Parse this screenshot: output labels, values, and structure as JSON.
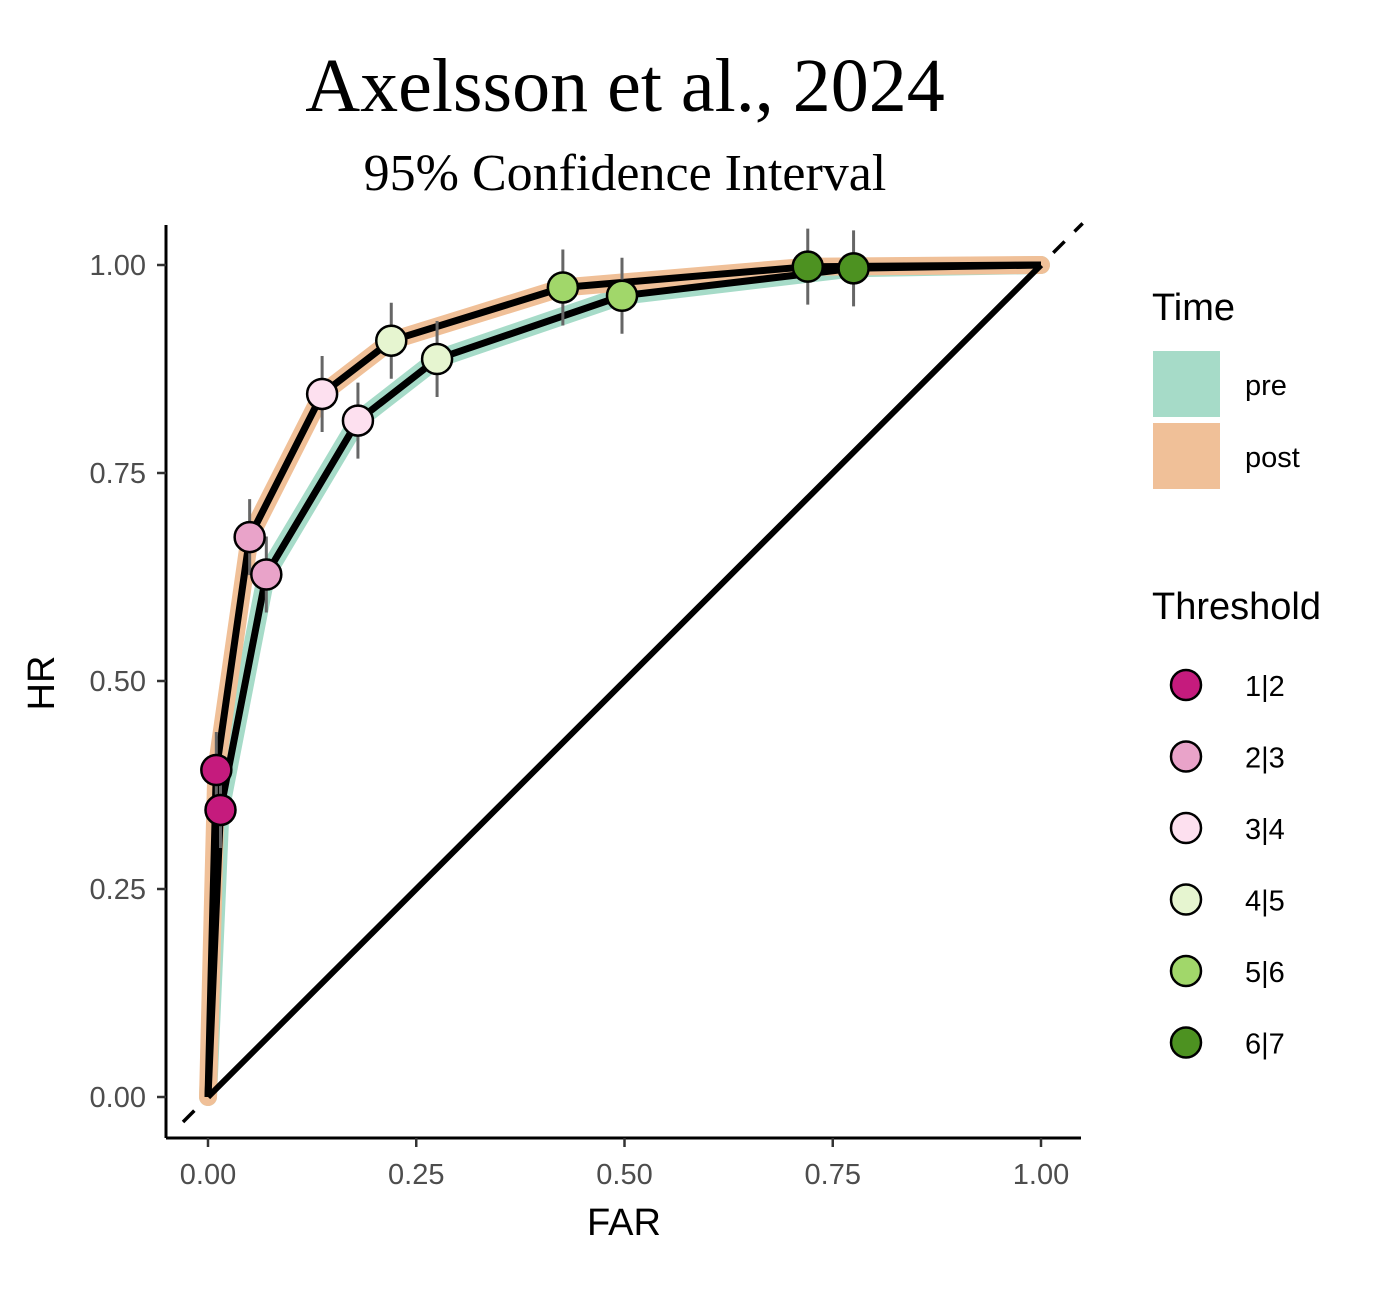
{
  "chart_data": {
    "type": "line",
    "title": "Axelsson et al., 2024",
    "subtitle": "95% Confidence Interval",
    "xlabel": "FAR",
    "ylabel": "HR",
    "xlim": [
      -0.05,
      1.05
    ],
    "ylim": [
      -0.05,
      1.05
    ],
    "x_ticks": [
      "0.00",
      "0.25",
      "0.50",
      "0.75",
      "1.00"
    ],
    "y_ticks": [
      "0.00",
      "0.25",
      "0.50",
      "0.75",
      "1.00"
    ],
    "diagonal_reference": true,
    "grid": false,
    "legend_placement": "right",
    "time_legend": {
      "title": "Time",
      "items": [
        {
          "label": "pre",
          "color": "#a6dbc8"
        },
        {
          "label": "post",
          "color": "#f0c098"
        }
      ]
    },
    "threshold_legend": {
      "title": "Threshold",
      "items": [
        {
          "label": "1|2",
          "color": "#c51b7d"
        },
        {
          "label": "2|3",
          "color": "#e9a3c9"
        },
        {
          "label": "3|4",
          "color": "#fde0ef"
        },
        {
          "label": "4|5",
          "color": "#e6f5d0"
        },
        {
          "label": "5|6",
          "color": "#a1d76a"
        },
        {
          "label": "6|7",
          "color": "#4d9221"
        }
      ]
    },
    "series": [
      {
        "name": "pre",
        "band_color": "#a6dbc8",
        "points": [
          {
            "x": 0.015,
            "y": 0.345,
            "threshold": "1|2"
          },
          {
            "x": 0.07,
            "y": 0.628,
            "threshold": "2|3"
          },
          {
            "x": 0.18,
            "y": 0.813,
            "threshold": "3|4"
          },
          {
            "x": 0.275,
            "y": 0.887,
            "threshold": "4|5"
          },
          {
            "x": 0.497,
            "y": 0.963,
            "threshold": "5|6"
          },
          {
            "x": 0.775,
            "y": 0.996,
            "threshold": "6|7"
          }
        ]
      },
      {
        "name": "post",
        "band_color": "#f0c098",
        "points": [
          {
            "x": 0.01,
            "y": 0.393,
            "threshold": "1|2"
          },
          {
            "x": 0.05,
            "y": 0.673,
            "threshold": "2|3"
          },
          {
            "x": 0.137,
            "y": 0.845,
            "threshold": "3|4"
          },
          {
            "x": 0.22,
            "y": 0.909,
            "threshold": "4|5"
          },
          {
            "x": 0.426,
            "y": 0.973,
            "threshold": "5|6"
          },
          {
            "x": 0.72,
            "y": 0.998,
            "threshold": "6|7"
          }
        ]
      }
    ]
  }
}
